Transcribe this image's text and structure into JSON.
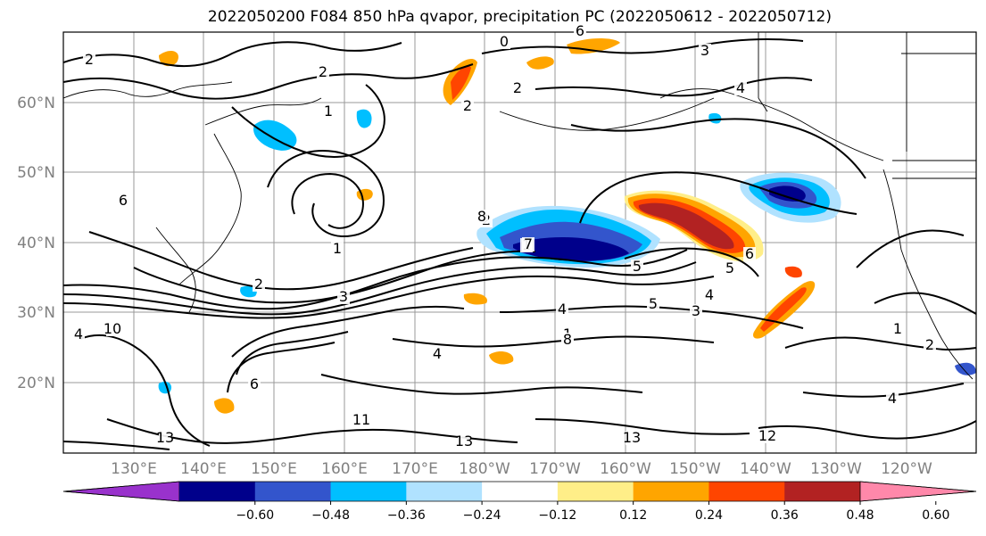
{
  "title": "2022050200 F084 850 hPa qvapor, precipitation PC (2022050612 - 2022050712)",
  "lon_ticks": [
    "130°E",
    "140°E",
    "150°E",
    "160°E",
    "170°E",
    "180°W",
    "170°W",
    "160°W",
    "150°W",
    "140°W",
    "130°W",
    "120°W"
  ],
  "lat_ticks": [
    "60°N",
    "50°N",
    "40°N",
    "30°N",
    "20°N"
  ],
  "colorbar": {
    "labels": [
      "−0.60",
      "−0.48",
      "−0.36",
      "−0.24",
      "−0.12",
      "0.12",
      "0.24",
      "0.36",
      "0.48",
      "0.60"
    ],
    "colors": [
      "#9932CC",
      "#00008B",
      "#3355CC",
      "#00BFFF",
      "#B0E2FF",
      "#FFFFFF",
      "#FFEE88",
      "#FFA500",
      "#FF4500",
      "#B22222",
      "#FF88AA"
    ]
  },
  "contour_labels": [
    "2",
    "0",
    "3",
    "2",
    "2",
    "1",
    "6",
    "1",
    "2",
    "4",
    "2",
    "1",
    "5",
    "4",
    "3",
    "5",
    "6",
    "4",
    "1",
    "2",
    "4",
    "1",
    "4",
    "8",
    "6",
    "4",
    "11",
    "13",
    "13",
    "12",
    "13",
    "10",
    "5",
    "6",
    "7",
    "8",
    "2",
    "3"
  ]
}
